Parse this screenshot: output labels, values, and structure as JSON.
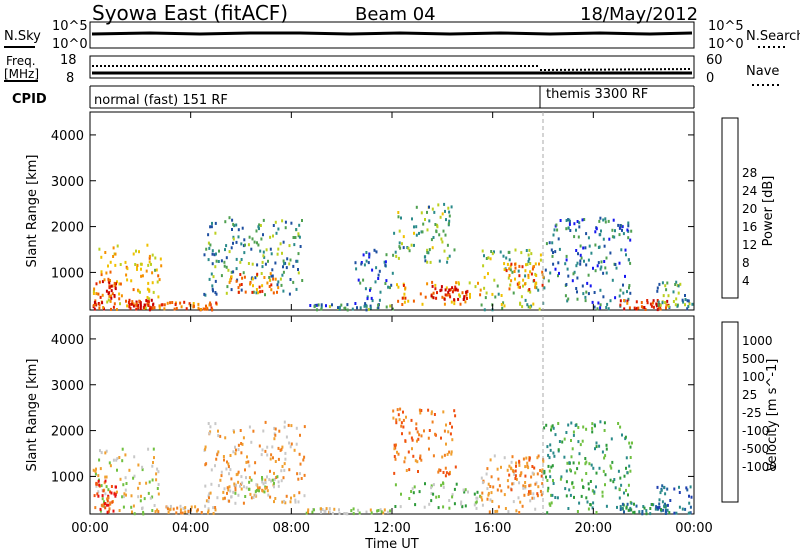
{
  "header": {
    "station": "Syowa East (fitACF)",
    "beam": "Beam 04",
    "date": "18/May/2012"
  },
  "noise_panel": {
    "left_label": "N.Sky",
    "right_label": "N.Search",
    "left_ticks": [
      "10^5",
      "10^0"
    ],
    "right_ticks": [
      "10^5",
      "10^0"
    ]
  },
  "freq_panel": {
    "left_label_1": "Freq.",
    "left_label_2": "[MHz]",
    "right_label": "Nave",
    "left_ticks": [
      "18",
      "8"
    ],
    "right_ticks": [
      "60",
      "0"
    ]
  },
  "cpid_panel": {
    "label": "CPID",
    "modes": [
      "normal (fast) 151 RF",
      "themis 3300 RF"
    ]
  },
  "chart_data": [
    {
      "type": "heatmap",
      "name": "power",
      "xlabel": "Time UT",
      "ylabel": "Slant Range [km]",
      "colorbar_label": "Power [dB]",
      "xlim": [
        0,
        24
      ],
      "ylim": [
        180,
        4500
      ],
      "x_ticks": [
        "00:00",
        "04:00",
        "08:00",
        "12:00",
        "16:00",
        "20:00",
        "00:00"
      ],
      "y_ticks": [
        1000,
        2000,
        3000,
        4000
      ],
      "colorbar_ticks": [
        "4",
        "8",
        "12",
        "16",
        "20",
        "24",
        "28"
      ],
      "colorbar_colors": [
        "#1616f0",
        "#1e4fa0",
        "#2a8a8a",
        "#4fa050",
        "#bcd020",
        "#f0c000",
        "#f59000",
        "#f06000",
        "#e02000",
        "#c80000"
      ],
      "marker_time": 18.0,
      "regions": [
        {
          "t": [
            0.1,
            2.8
          ],
          "r": [
            180,
            1600
          ],
          "v": 18
        },
        {
          "t": [
            0.1,
            1.0
          ],
          "r": [
            180,
            900
          ],
          "v": 26
        },
        {
          "t": [
            1.5,
            2.5
          ],
          "r": [
            180,
            400
          ],
          "v": 27
        },
        {
          "t": [
            2.5,
            5.0
          ],
          "r": [
            180,
            350
          ],
          "v": 22
        },
        {
          "t": [
            4.5,
            8.5
          ],
          "r": [
            500,
            2200
          ],
          "v": 10
        },
        {
          "t": [
            5.5,
            7.5
          ],
          "r": [
            550,
            1000
          ],
          "v": 22
        },
        {
          "t": [
            8.5,
            12.0
          ],
          "r": [
            180,
            300
          ],
          "v": 9
        },
        {
          "t": [
            10.5,
            12.0
          ],
          "r": [
            300,
            1500
          ],
          "v": 7
        },
        {
          "t": [
            12.0,
            15.5
          ],
          "r": [
            300,
            800
          ],
          "v": 20
        },
        {
          "t": [
            13.5,
            15.0
          ],
          "r": [
            400,
            700
          ],
          "v": 28
        },
        {
          "t": [
            12.0,
            14.5
          ],
          "r": [
            1200,
            2500
          ],
          "v": 12
        },
        {
          "t": [
            15.5,
            18.0
          ],
          "r": [
            180,
            1500
          ],
          "v": 13
        },
        {
          "t": [
            16.5,
            18.0
          ],
          "r": [
            600,
            1200
          ],
          "v": 21
        },
        {
          "t": [
            18.0,
            21.5
          ],
          "r": [
            200,
            2200
          ],
          "v": 8
        },
        {
          "t": [
            21.0,
            23.0
          ],
          "r": [
            180,
            400
          ],
          "v": 26
        },
        {
          "t": [
            22.5,
            23.9
          ],
          "r": [
            180,
            800
          ],
          "v": 11
        }
      ]
    },
    {
      "type": "heatmap",
      "name": "velocity",
      "xlabel": "Time UT",
      "ylabel": "Slant Range [km]",
      "colorbar_label": "Velocity [m s^-1]",
      "xlim": [
        0,
        24
      ],
      "ylim": [
        180,
        4500
      ],
      "x_ticks": [
        "00:00",
        "04:00",
        "08:00",
        "12:00",
        "16:00",
        "20:00",
        "00:00"
      ],
      "y_ticks": [
        1000,
        2000,
        3000,
        4000
      ],
      "colorbar_ticks": [
        "1000",
        "500",
        "100",
        "25",
        "-25",
        "-100",
        "-500",
        "-1000"
      ],
      "colorbar_colors": [
        "#2040b0",
        "#2060a0",
        "#2a8a8a",
        "#2e9a3a",
        "#70c040",
        "#c8c8c8",
        "#f0a030",
        "#f08020",
        "#f05010",
        "#e81010"
      ],
      "marker_time": 18.0,
      "regions": [
        {
          "t": [
            0.1,
            2.8
          ],
          "r": [
            180,
            1600
          ],
          "v": 5
        },
        {
          "t": [
            0.1,
            1.0
          ],
          "r": [
            200,
            900
          ],
          "v": 8
        },
        {
          "t": [
            2.5,
            5.0
          ],
          "r": [
            180,
            350
          ],
          "v": 6
        },
        {
          "t": [
            4.5,
            8.5
          ],
          "r": [
            400,
            2200
          ],
          "v": 6
        },
        {
          "t": [
            5.5,
            7.5
          ],
          "r": [
            550,
            1000
          ],
          "v": 5
        },
        {
          "t": [
            8.5,
            12.0
          ],
          "r": [
            180,
            300
          ],
          "v": 5
        },
        {
          "t": [
            12.0,
            15.5
          ],
          "r": [
            300,
            900
          ],
          "v": 4
        },
        {
          "t": [
            12.0,
            14.5
          ],
          "r": [
            1000,
            2500
          ],
          "v": 7
        },
        {
          "t": [
            15.5,
            18.0
          ],
          "r": [
            180,
            1500
          ],
          "v": 6
        },
        {
          "t": [
            16.5,
            18.0
          ],
          "r": [
            600,
            1500
          ],
          "v": 7
        },
        {
          "t": [
            18.0,
            21.5
          ],
          "r": [
            200,
            2200
          ],
          "v": 3
        },
        {
          "t": [
            21.0,
            23.0
          ],
          "r": [
            180,
            400
          ],
          "v": 2
        },
        {
          "t": [
            22.5,
            23.9
          ],
          "r": [
            180,
            800
          ],
          "v": 1
        }
      ]
    }
  ]
}
